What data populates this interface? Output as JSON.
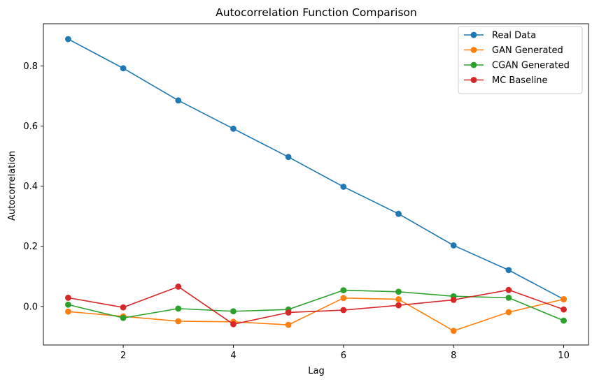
{
  "chart_data": {
    "type": "line",
    "title": "Autocorrelation Function Comparison",
    "xlabel": "Lag",
    "ylabel": "Autocorrelation",
    "x": [
      1,
      2,
      3,
      4,
      5,
      6,
      7,
      8,
      9,
      10
    ],
    "xlim": [
      0.55,
      10.45
    ],
    "ylim": [
      -0.128,
      0.94
    ],
    "xticks": [
      2,
      4,
      6,
      8,
      10
    ],
    "yticks": [
      0.0,
      0.2,
      0.4,
      0.6,
      0.8
    ],
    "xtick_labels": [
      "2",
      "4",
      "6",
      "8",
      "10"
    ],
    "ytick_labels": [
      "0.0",
      "0.2",
      "0.4",
      "0.6",
      "0.8"
    ],
    "grid": false,
    "legend_position": "top-right",
    "series": [
      {
        "name": "Real Data",
        "color": "#1f77b4",
        "values": [
          0.889,
          0.792,
          0.685,
          0.591,
          0.497,
          0.398,
          0.308,
          0.203,
          0.121,
          0.024
        ]
      },
      {
        "name": "GAN Generated",
        "color": "#ff7f0e",
        "values": [
          -0.017,
          -0.033,
          -0.049,
          -0.051,
          -0.061,
          0.028,
          0.024,
          -0.081,
          -0.019,
          0.024
        ]
      },
      {
        "name": "CGAN Generated",
        "color": "#2ca02c",
        "values": [
          0.006,
          -0.038,
          -0.007,
          -0.016,
          -0.01,
          0.054,
          0.049,
          0.034,
          0.029,
          -0.047
        ]
      },
      {
        "name": "MC Baseline",
        "color": "#d62728",
        "values": [
          0.029,
          -0.003,
          0.066,
          -0.059,
          -0.02,
          -0.012,
          0.004,
          0.022,
          0.055,
          -0.01
        ]
      }
    ]
  }
}
